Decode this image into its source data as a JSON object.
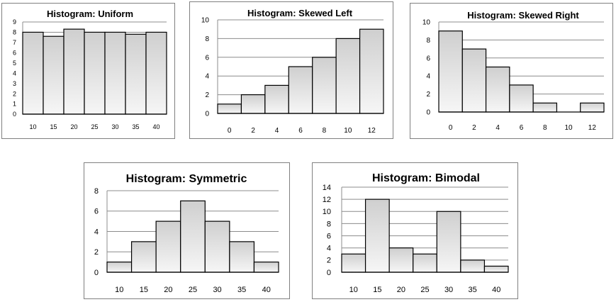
{
  "chart_data": [
    {
      "type": "bar",
      "title": "Histogram: Uniform",
      "categories": [
        "10",
        "15",
        "20",
        "25",
        "30",
        "35",
        "40"
      ],
      "values": [
        8,
        7.6,
        8.3,
        8,
        8,
        7.8,
        8
      ],
      "ylim": [
        0,
        9
      ],
      "yticks": [
        "0",
        "1",
        "2",
        "3",
        "4",
        "5",
        "6",
        "7",
        "8",
        "9"
      ],
      "grid": true
    },
    {
      "type": "bar",
      "title": "Histogram: Skewed Left",
      "categories": [
        "0",
        "2",
        "4",
        "6",
        "8",
        "10",
        "12"
      ],
      "values": [
        1,
        2,
        3,
        5,
        6,
        8,
        9
      ],
      "ylim": [
        0,
        10
      ],
      "yticks": [
        "0",
        "2",
        "4",
        "6",
        "8",
        "10"
      ],
      "grid": true
    },
    {
      "type": "bar",
      "title": "Histogram: Skewed Right",
      "categories": [
        "0",
        "2",
        "4",
        "6",
        "8",
        "10",
        "12"
      ],
      "values": [
        9,
        7,
        5,
        3,
        1,
        0,
        1
      ],
      "ylim": [
        0,
        10
      ],
      "yticks": [
        "0",
        "2",
        "4",
        "6",
        "8",
        "10"
      ],
      "grid": true
    },
    {
      "type": "bar",
      "title": "Histogram: Symmetric",
      "categories": [
        "10",
        "15",
        "20",
        "25",
        "30",
        "35",
        "40"
      ],
      "values": [
        1,
        3,
        5,
        7,
        5,
        3,
        1
      ],
      "ylim": [
        0,
        8
      ],
      "yticks": [
        "0",
        "2",
        "4",
        "6",
        "8"
      ],
      "grid": true
    },
    {
      "type": "bar",
      "title": "Histogram: Bimodal",
      "categories": [
        "10",
        "15",
        "20",
        "25",
        "30",
        "35",
        "40"
      ],
      "values": [
        3,
        12,
        4,
        3,
        10,
        2,
        1
      ],
      "ylim": [
        0,
        14
      ],
      "yticks": [
        "0",
        "2",
        "4",
        "6",
        "8",
        "10",
        "12",
        "14"
      ],
      "grid": true
    }
  ]
}
